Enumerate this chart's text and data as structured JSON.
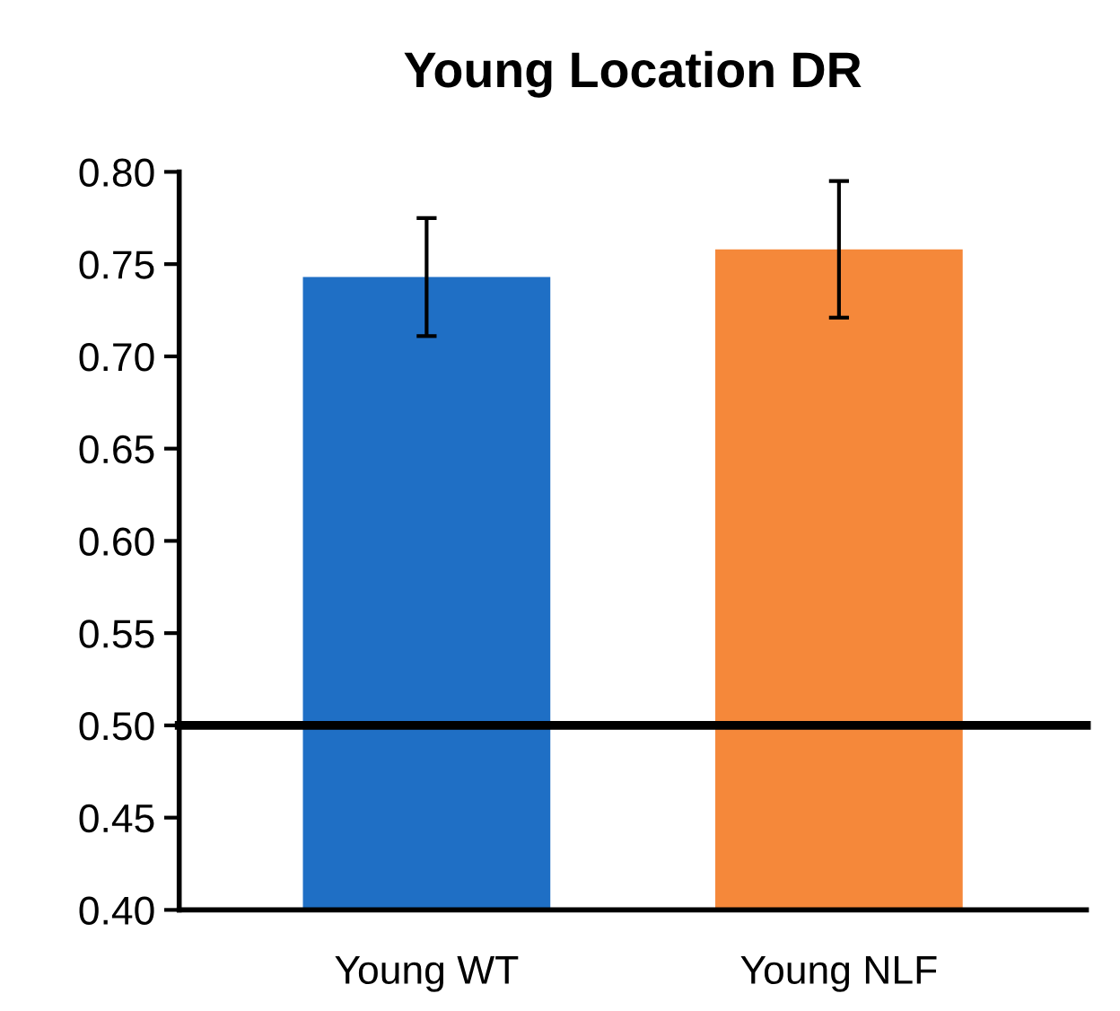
{
  "chart_data": {
    "type": "bar",
    "title": "Young Location DR",
    "categories": [
      "Young WT",
      "Young NLF"
    ],
    "values": [
      0.743,
      0.758
    ],
    "colors": [
      "#1f6fc5",
      "#f5883a"
    ],
    "errors": [
      0.032,
      0.037
    ],
    "ylim": [
      0.4,
      0.8
    ],
    "yticks": [
      {
        "value": 0.4,
        "label": "0.40"
      },
      {
        "value": 0.45,
        "label": "0.45"
      },
      {
        "value": 0.5,
        "label": "0.50"
      },
      {
        "value": 0.55,
        "label": "0.55"
      },
      {
        "value": 0.6,
        "label": "0.60"
      },
      {
        "value": 0.65,
        "label": "0.65"
      },
      {
        "value": 0.7,
        "label": "0.70"
      },
      {
        "value": 0.75,
        "label": "0.75"
      },
      {
        "value": 0.8,
        "label": "0.80"
      }
    ],
    "ref_lines": [
      {
        "axis": "y",
        "value": 0.5,
        "color": "#000000",
        "line_style": "solid"
      }
    ],
    "grid": false
  }
}
